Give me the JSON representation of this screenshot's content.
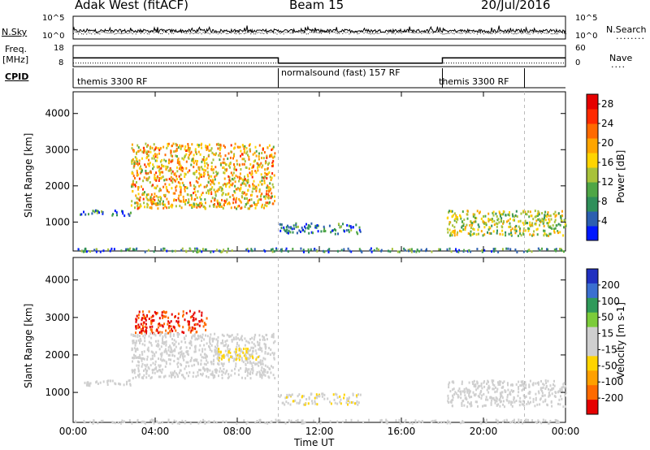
{
  "header": {
    "station": "Adak West (fitACF)",
    "beam": "Beam 15",
    "date": "20/Jul/2016"
  },
  "noise_panel": {
    "left_label": "N.Sky",
    "left_ticks": [
      "10^5",
      "10^0"
    ],
    "right_ticks": [
      "10^5",
      "10^0"
    ],
    "right_label": "N.Search",
    "right_legend": "........"
  },
  "freq_panel": {
    "left_label_1": "Freq.",
    "left_label_2": "[MHz]",
    "left_ticks": [
      "18",
      "8"
    ],
    "right_ticks": [
      "60",
      "0"
    ],
    "right_label": "Nave",
    "right_legend": "....",
    "freq_levels_mhz": [
      11,
      8,
      11
    ],
    "nave_level": 10
  },
  "cpid": {
    "label": "CPID",
    "segments": [
      {
        "name": "themis 3300 RF",
        "start_hour": 0,
        "end_hour": 10
      },
      {
        "name": "normalsound (fast) 157 RF",
        "start_hour": 10,
        "end_hour": 18
      },
      {
        "name": "themis 3300 RF",
        "start_hour": 18,
        "end_hour": 22
      }
    ]
  },
  "x_axis": {
    "title": "Time UT",
    "ticks": [
      "00:00",
      "04:00",
      "08:00",
      "12:00",
      "16:00",
      "20:00",
      "00:00"
    ],
    "range_hours": [
      0,
      24
    ],
    "dashed_markers_hours": [
      10,
      22
    ]
  },
  "chart_data": [
    {
      "type": "heatmap",
      "title": "",
      "ylabel": "Slant Range [km]",
      "xlabel": "Time UT",
      "y_ticks": [
        1000,
        2000,
        3000,
        4000
      ],
      "ylim": [
        200,
        4600
      ],
      "xlim_hours": [
        0,
        24
      ],
      "colorbar": {
        "label": "Power [dB]",
        "ticks": [
          "4",
          "8",
          "12",
          "16",
          "20",
          "24",
          "28"
        ],
        "colors": [
          "#0018ff",
          "#2c5fb0",
          "#2f8f5a",
          "#4fa646",
          "#a8c23a",
          "#ffd400",
          "#ffa500",
          "#ff6a00",
          "#ff2a00",
          "#e60000"
        ],
        "range": [
          0,
          30
        ]
      },
      "echo_regions": [
        {
          "x": [
            0.2,
            2.8
          ],
          "y_km": [
            1200,
            1350
          ],
          "value": 6
        },
        {
          "x": [
            2.8,
            9.8
          ],
          "y_km": [
            1400,
            3200
          ],
          "value": 18
        },
        {
          "x": [
            10,
            14
          ],
          "y_km": [
            700,
            1000
          ],
          "value": 6
        },
        {
          "x": [
            18.2,
            24
          ],
          "y_km": [
            650,
            1350
          ],
          "value": 14
        },
        {
          "x": [
            0,
            24
          ],
          "y_km": [
            200,
            300
          ],
          "value": 8
        }
      ]
    },
    {
      "type": "heatmap",
      "title": "",
      "ylabel": "Slant Range [km]",
      "xlabel": "Time UT",
      "y_ticks": [
        1000,
        2000,
        3000,
        4000
      ],
      "ylim": [
        200,
        4600
      ],
      "xlim_hours": [
        0,
        24
      ],
      "colorbar": {
        "label": "Velocity [m s-1]",
        "ticks": [
          "200",
          "100",
          "50",
          "15",
          "-15",
          "-50",
          "-100",
          "-200"
        ],
        "colors": [
          "#2030c0",
          "#3a6fd0",
          "#2f9a5a",
          "#7ccc3a",
          "#cfcfcf",
          "#cfcfcf",
          "#ffd400",
          "#ffa000",
          "#ff6a00",
          "#e60000"
        ],
        "range": [
          -250,
          250
        ]
      },
      "echo_regions": [
        {
          "x": [
            0.2,
            2.8
          ],
          "y_km": [
            1200,
            1350
          ],
          "value": 0
        },
        {
          "x": [
            3,
            6.5
          ],
          "y_km": [
            2600,
            3200
          ],
          "value": -200
        },
        {
          "x": [
            2.8,
            9.8
          ],
          "y_km": [
            1400,
            2600
          ],
          "value": 0
        },
        {
          "x": [
            7,
            9
          ],
          "y_km": [
            1900,
            2200
          ],
          "value": -60
        },
        {
          "x": [
            10,
            14
          ],
          "y_km": [
            700,
            1000
          ],
          "value": -40
        },
        {
          "x": [
            18.2,
            24
          ],
          "y_km": [
            650,
            1350
          ],
          "value": 0
        },
        {
          "x": [
            0,
            24
          ],
          "y_km": [
            200,
            300
          ],
          "value": 20
        }
      ]
    }
  ]
}
